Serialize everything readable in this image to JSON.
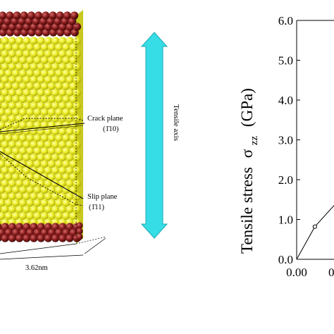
{
  "colors": {
    "atom_yellow": "#eeee2e",
    "atom_yellow_shade": "#b8b800",
    "atom_red": "#8e2020",
    "atom_red_shade": "#4a0808",
    "arrow_cyan": "#37dde6",
    "arrow_cyan_edge": "#1aa9b3",
    "line_black": "#000000"
  },
  "icons": {
    "tensile_arrow": "double-headed-vertical-arrow"
  },
  "labels": {
    "crack_plane": "Crack plane",
    "crack_plane_index": "(1̄10)",
    "slip_plane": "Slip plane",
    "slip_plane_index": "(1̄11)",
    "tensile_axis": "Tensile axis",
    "width_dimension": "3.62nm"
  },
  "chart_data": {
    "type": "line",
    "ylabel_main": "Tensile stress",
    "ylabel_symbol": "σ",
    "ylabel_subscript": "zz",
    "ylabel_unit": "(GPa)",
    "ylim": [
      0.0,
      6.0
    ],
    "y_ticks": [
      "0.0",
      "1.0",
      "2.0",
      "3.0",
      "4.0",
      "5.0",
      "6.0"
    ],
    "x_ticks_visible": [
      "0.00",
      "0"
    ],
    "series": [
      {
        "x_pixel_fraction": null,
        "points": [
          [
            0.0,
            0.0
          ],
          [
            0.045,
            0.82
          ],
          [
            0.095,
            1.38
          ]
        ]
      }
    ],
    "markers": [
      [
        0.045,
        0.82
      ]
    ]
  }
}
